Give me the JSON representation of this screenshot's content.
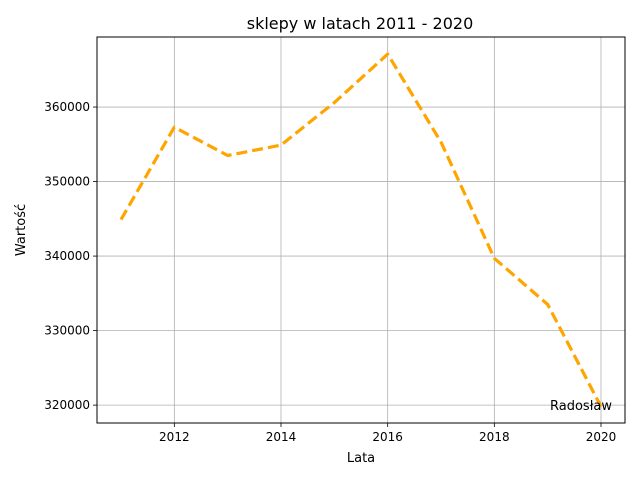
{
  "chart_data": {
    "type": "line",
    "title": "sklepy w latach 2011 - 2020",
    "xlabel": "Lata",
    "ylabel": "Wartość",
    "x": [
      2011,
      2012,
      2013,
      2014,
      2015,
      2016,
      2017,
      2018,
      2019,
      2020
    ],
    "series": [
      {
        "values": [
          344900,
          357300,
          353500,
          354900,
          360600,
          367100,
          355300,
          339700,
          333500,
          319800
        ],
        "color": "#FFA500",
        "line_style": "dashed"
      }
    ],
    "xlim": [
      2010.55,
      2020.45
    ],
    "ylim": [
      317600,
      369400
    ],
    "xticks": [
      2012,
      2014,
      2016,
      2018,
      2020
    ],
    "yticks": [
      320000,
      330000,
      340000,
      350000,
      360000
    ],
    "grid": true,
    "annotation": {
      "text": "Radosław",
      "x": 2020,
      "y": 320000
    }
  }
}
